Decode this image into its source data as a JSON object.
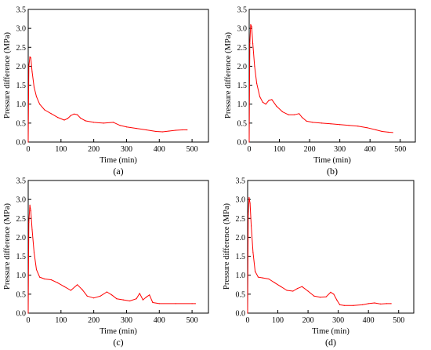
{
  "colors": {
    "series": "#ff0000",
    "axis": "#000000",
    "background": "#ffffff"
  },
  "chart_data": [
    {
      "type": "line",
      "panel_label": "(a)",
      "xlabel": "Time (min)",
      "ylabel": "Pressure difference (MPa)",
      "xlim": [
        0,
        550
      ],
      "ylim": [
        0,
        3.5
      ],
      "xticks": [
        0,
        100,
        200,
        300,
        400,
        500
      ],
      "yticks": [
        0.0,
        0.5,
        1.0,
        1.5,
        2.0,
        2.5,
        3.0,
        3.5
      ],
      "xtick_labels": [
        "0",
        "100",
        "200",
        "300",
        "400",
        "500"
      ],
      "ytick_labels": [
        "0.0",
        "0.5",
        "1.0",
        "1.5",
        "2.0",
        "2.5",
        "3.0",
        "3.5"
      ],
      "grid": false,
      "series": [
        {
          "x": [
            0,
            2,
            5,
            8,
            12,
            18,
            25,
            35,
            50,
            70,
            90,
            110,
            120,
            130,
            140,
            150,
            160,
            175,
            200,
            230,
            260,
            280,
            300,
            330,
            360,
            390,
            410,
            430,
            450,
            470,
            485
          ],
          "y": [
            0,
            2.0,
            2.25,
            2.22,
            1.85,
            1.45,
            1.2,
            1.0,
            0.85,
            0.75,
            0.65,
            0.58,
            0.62,
            0.7,
            0.74,
            0.72,
            0.63,
            0.56,
            0.52,
            0.5,
            0.52,
            0.44,
            0.4,
            0.36,
            0.32,
            0.28,
            0.27,
            0.29,
            0.31,
            0.32,
            0.32
          ]
        }
      ]
    },
    {
      "type": "line",
      "panel_label": "(b)",
      "xlabel": "Time (min)",
      "ylabel": "Pressure difference (MPa)",
      "xlim": [
        0,
        550
      ],
      "ylim": [
        0,
        3.5
      ],
      "xticks": [
        0,
        100,
        200,
        300,
        400,
        500
      ],
      "yticks": [
        0.0,
        0.5,
        1.0,
        1.5,
        2.0,
        2.5,
        3.0,
        3.5
      ],
      "xtick_labels": [
        "0",
        "100",
        "200",
        "300",
        "400",
        "500"
      ],
      "ytick_labels": [
        "0.0",
        "0.5",
        "1.0",
        "1.5",
        "2.0",
        "2.5",
        "3.0",
        "3.5"
      ],
      "grid": false,
      "series": [
        {
          "x": [
            0,
            2,
            5,
            8,
            12,
            18,
            25,
            35,
            45,
            55,
            65,
            75,
            90,
            110,
            130,
            150,
            165,
            175,
            190,
            210,
            240,
            270,
            300,
            330,
            360,
            390,
            420,
            440,
            460,
            475
          ],
          "y": [
            0,
            2.6,
            3.1,
            3.05,
            2.6,
            2.0,
            1.55,
            1.2,
            1.05,
            1.0,
            1.1,
            1.12,
            0.95,
            0.8,
            0.72,
            0.72,
            0.75,
            0.65,
            0.55,
            0.52,
            0.5,
            0.48,
            0.46,
            0.44,
            0.42,
            0.38,
            0.32,
            0.28,
            0.26,
            0.25
          ]
        }
      ]
    },
    {
      "type": "line",
      "panel_label": "(c)",
      "xlabel": "Time (min)",
      "ylabel": "Pressure difference (MPa)",
      "xlim": [
        0,
        550
      ],
      "ylim": [
        0,
        3.5
      ],
      "xticks": [
        0,
        100,
        200,
        300,
        400,
        500
      ],
      "yticks": [
        0.0,
        0.5,
        1.0,
        1.5,
        2.0,
        2.5,
        3.0,
        3.5
      ],
      "xtick_labels": [
        "0",
        "100",
        "200",
        "300",
        "400",
        "500"
      ],
      "ytick_labels": [
        "0.0",
        "0.5",
        "1.0",
        "1.5",
        "2.0",
        "2.5",
        "3.0",
        "3.5"
      ],
      "grid": false,
      "series": [
        {
          "x": [
            0,
            2,
            5,
            8,
            12,
            18,
            25,
            35,
            50,
            70,
            90,
            110,
            130,
            150,
            165,
            180,
            200,
            220,
            240,
            255,
            270,
            290,
            310,
            330,
            340,
            350,
            360,
            370,
            380,
            400,
            450,
            500,
            510
          ],
          "y": [
            0,
            2.4,
            2.85,
            2.7,
            2.2,
            1.6,
            1.15,
            0.95,
            0.9,
            0.88,
            0.8,
            0.7,
            0.6,
            0.75,
            0.62,
            0.45,
            0.4,
            0.45,
            0.56,
            0.48,
            0.38,
            0.35,
            0.32,
            0.38,
            0.52,
            0.35,
            0.42,
            0.48,
            0.28,
            0.25,
            0.25,
            0.25,
            0.25
          ]
        }
      ]
    },
    {
      "type": "line",
      "panel_label": "(d)",
      "xlabel": "Time (min)",
      "ylabel": "Pressure difference (MPa)",
      "xlim": [
        0,
        550
      ],
      "ylim": [
        0,
        3.5
      ],
      "xticks": [
        0,
        100,
        200,
        300,
        400,
        500
      ],
      "yticks": [
        0.0,
        0.5,
        1.0,
        1.5,
        2.0,
        2.5,
        3.0,
        3.5
      ],
      "xtick_labels": [
        "0",
        "100",
        "200",
        "300",
        "400",
        "500"
      ],
      "ytick_labels": [
        "0.0",
        "0.5",
        "1.0",
        "1.5",
        "2.0",
        "2.5",
        "3.0",
        "3.5"
      ],
      "grid": false,
      "series": [
        {
          "x": [
            0,
            2,
            5,
            8,
            12,
            18,
            25,
            35,
            50,
            70,
            90,
            110,
            130,
            150,
            165,
            180,
            200,
            220,
            240,
            260,
            275,
            285,
            295,
            305,
            320,
            350,
            380,
            400,
            420,
            440,
            460,
            475
          ],
          "y": [
            0,
            2.6,
            3.05,
            2.9,
            2.3,
            1.6,
            1.1,
            0.95,
            0.93,
            0.9,
            0.8,
            0.7,
            0.6,
            0.58,
            0.65,
            0.7,
            0.58,
            0.45,
            0.42,
            0.43,
            0.55,
            0.5,
            0.35,
            0.22,
            0.2,
            0.2,
            0.22,
            0.25,
            0.27,
            0.24,
            0.25,
            0.25
          ]
        }
      ]
    }
  ]
}
